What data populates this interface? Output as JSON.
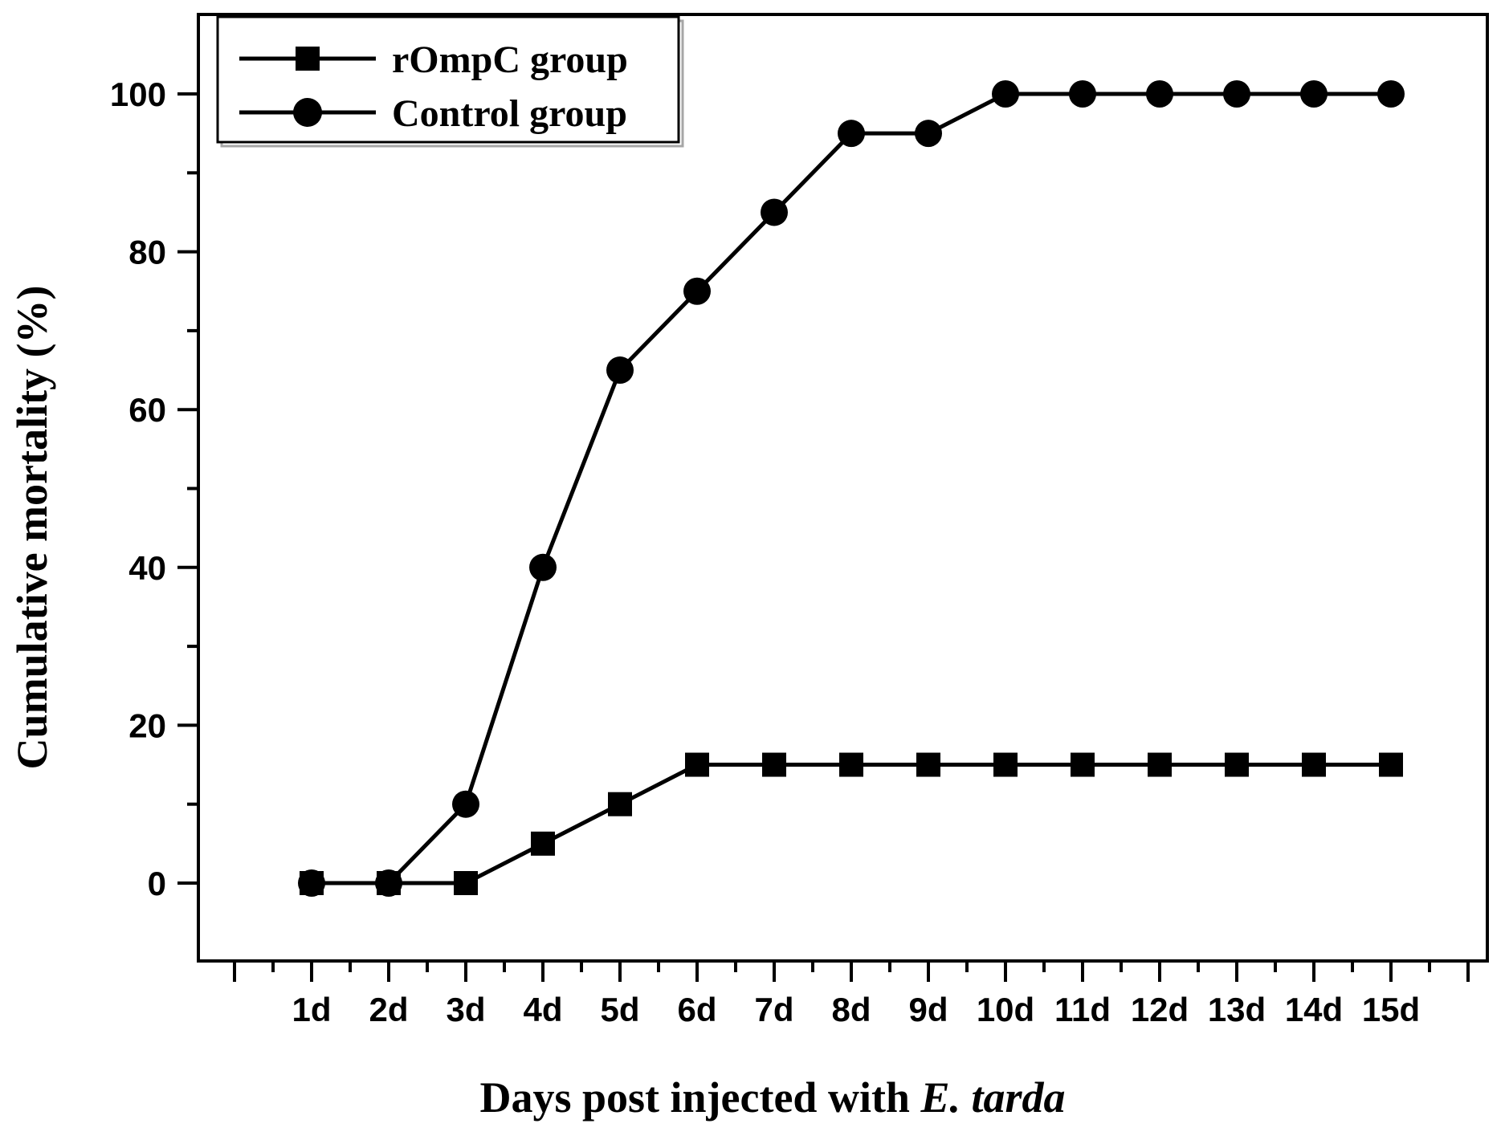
{
  "chart_data": {
    "type": "line",
    "title": "",
    "xlabel_regular": "Days post injected with ",
    "xlabel_italic": "E. tarda",
    "ylabel": "Cumulative mortality (%)",
    "categories": [
      "1d",
      "2d",
      "3d",
      "4d",
      "5d",
      "6d",
      "7d",
      "8d",
      "9d",
      "10d",
      "11d",
      "12d",
      "13d",
      "14d",
      "15d"
    ],
    "series": [
      {
        "name": "rOmpC group",
        "marker": "square",
        "color": "#000000",
        "values": [
          0,
          0,
          0,
          5,
          10,
          15,
          15,
          15,
          15,
          15,
          15,
          15,
          15,
          15,
          15
        ]
      },
      {
        "name": "Control group",
        "marker": "circle",
        "color": "#000000",
        "values": [
          0,
          0,
          10,
          40,
          65,
          75,
          85,
          95,
          95,
          100,
          100,
          100,
          100,
          100,
          100
        ]
      }
    ],
    "yticks": [
      0,
      20,
      40,
      60,
      80,
      100
    ],
    "y_minor_ticks": [
      10,
      30,
      50,
      70,
      90
    ],
    "ylim": [
      -10,
      110
    ],
    "grid": false,
    "legend_position": "top-left",
    "line_color": "#000000",
    "background_color": "#ffffff",
    "legend_shadow_color": "#a6a6a6"
  }
}
